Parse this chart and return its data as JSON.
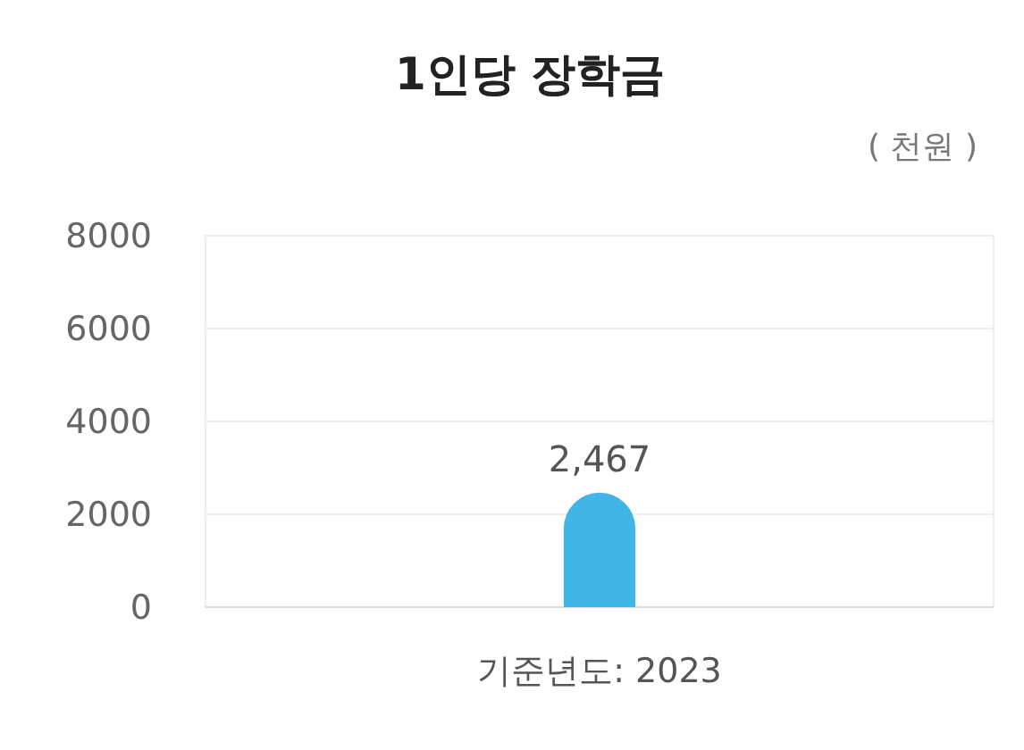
{
  "chart_data": {
    "type": "bar",
    "title": "1인당 장학금",
    "subtitle": "( 천원 )",
    "categories": [
      "기준년도: 2023"
    ],
    "values": [
      2467
    ],
    "value_labels": [
      "2,467"
    ],
    "color": "#41b6e6",
    "ylim": [
      0,
      8000
    ],
    "yticks": [
      0,
      2000,
      4000,
      6000,
      8000
    ],
    "grid": "y"
  }
}
